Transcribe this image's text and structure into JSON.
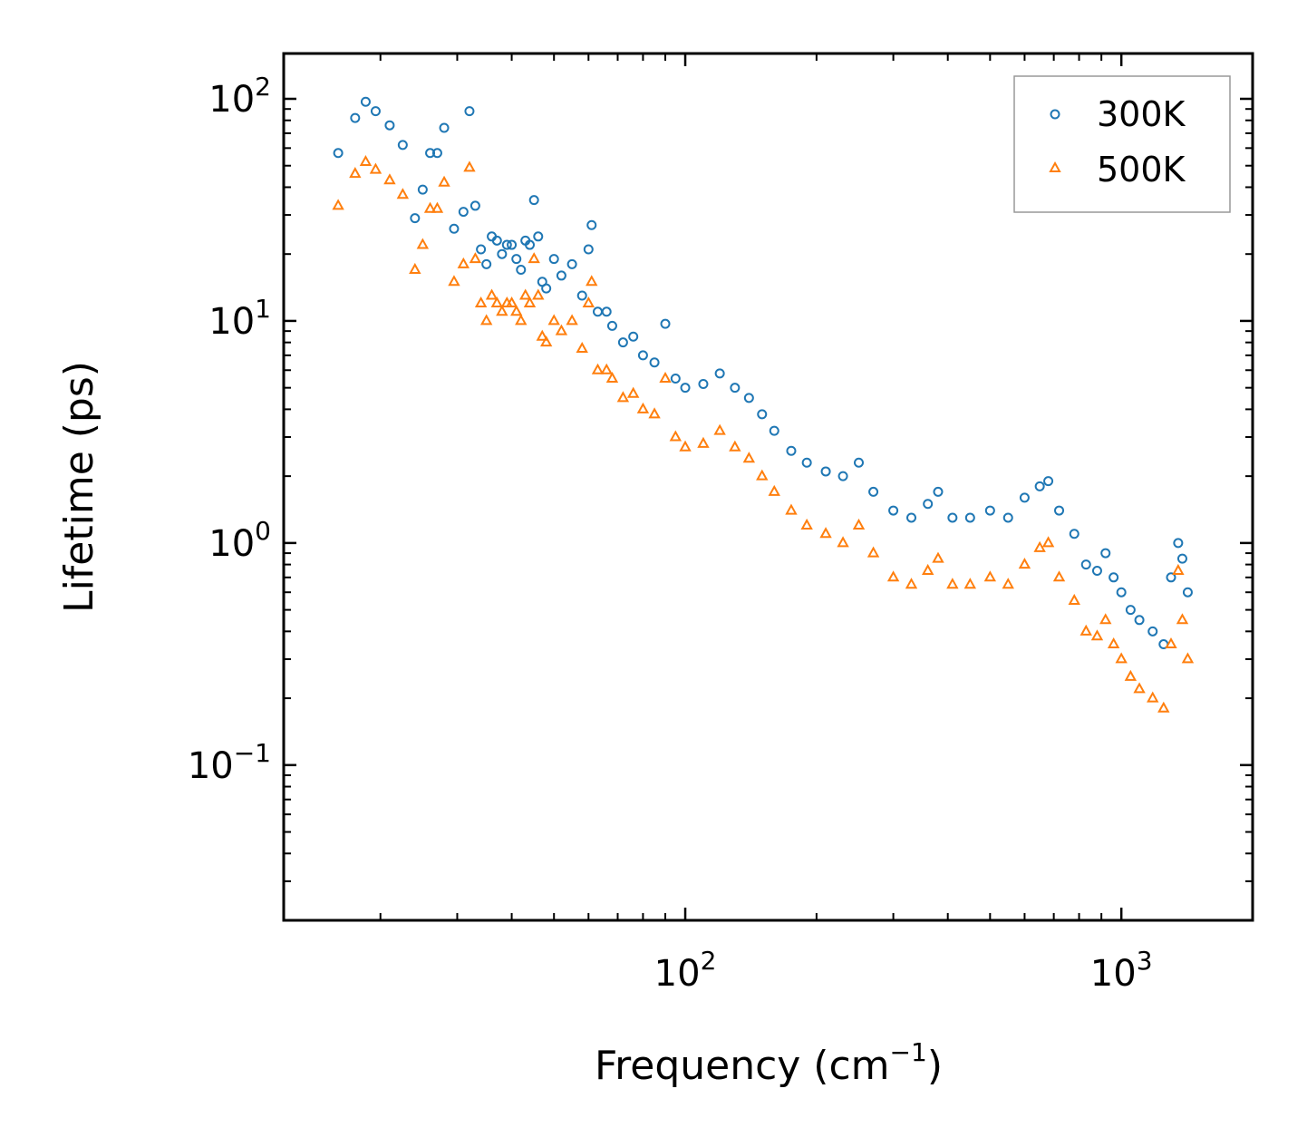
{
  "chart_data": {
    "type": "scatter",
    "title": "",
    "xlabel": "Frequency (cm",
    "xlabel_sup": "−1",
    "xlabel_end": ")",
    "ylabel": "Lifetime (ps)",
    "xscale": "log",
    "yscale": "log",
    "xlim": [
      12,
      2000
    ],
    "ylim": [
      0.02,
      160
    ],
    "legend_position": "top-right",
    "x_ticks": [
      {
        "value": 100,
        "base": "10",
        "exp": "2"
      },
      {
        "value": 1000,
        "base": "10",
        "exp": "3"
      }
    ],
    "y_ticks": [
      {
        "value": 0.1,
        "base": "10",
        "exp": "−1"
      },
      {
        "value": 1,
        "base": "10",
        "exp": "0"
      },
      {
        "value": 10,
        "base": "10",
        "exp": "1"
      },
      {
        "value": 100,
        "base": "10",
        "exp": "2"
      }
    ],
    "series": [
      {
        "name": "300K",
        "color": "#1f77b4",
        "marker": "circle",
        "points": [
          [
            16,
            57
          ],
          [
            17.5,
            82
          ],
          [
            18.5,
            97
          ],
          [
            19.5,
            88
          ],
          [
            21,
            76
          ],
          [
            22.5,
            62
          ],
          [
            24,
            29
          ],
          [
            25,
            39
          ],
          [
            26,
            57
          ],
          [
            27,
            57
          ],
          [
            28,
            74
          ],
          [
            29.5,
            26
          ],
          [
            31,
            31
          ],
          [
            32,
            88
          ],
          [
            33,
            33
          ],
          [
            34,
            21
          ],
          [
            35,
            18
          ],
          [
            36,
            24
          ],
          [
            37,
            23
          ],
          [
            38,
            20
          ],
          [
            39,
            22
          ],
          [
            40,
            22
          ],
          [
            41,
            19
          ],
          [
            42,
            17
          ],
          [
            43,
            23
          ],
          [
            44,
            22
          ],
          [
            45,
            35
          ],
          [
            46,
            24
          ],
          [
            47,
            15
          ],
          [
            48,
            14
          ],
          [
            50,
            19
          ],
          [
            52,
            16
          ],
          [
            55,
            18
          ],
          [
            58,
            13
          ],
          [
            60,
            21
          ],
          [
            61,
            27
          ],
          [
            63,
            11
          ],
          [
            66,
            11
          ],
          [
            68,
            9.5
          ],
          [
            72,
            8
          ],
          [
            76,
            8.5
          ],
          [
            80,
            7
          ],
          [
            85,
            6.5
          ],
          [
            90,
            9.7
          ],
          [
            95,
            5.5
          ],
          [
            100,
            5
          ],
          [
            110,
            5.2
          ],
          [
            120,
            5.8
          ],
          [
            130,
            5
          ],
          [
            140,
            4.5
          ],
          [
            150,
            3.8
          ],
          [
            160,
            3.2
          ],
          [
            175,
            2.6
          ],
          [
            190,
            2.3
          ],
          [
            210,
            2.1
          ],
          [
            230,
            2.0
          ],
          [
            250,
            2.3
          ],
          [
            270,
            1.7
          ],
          [
            300,
            1.4
          ],
          [
            330,
            1.3
          ],
          [
            360,
            1.5
          ],
          [
            380,
            1.7
          ],
          [
            410,
            1.3
          ],
          [
            450,
            1.3
          ],
          [
            500,
            1.4
          ],
          [
            550,
            1.3
          ],
          [
            600,
            1.6
          ],
          [
            650,
            1.8
          ],
          [
            680,
            1.9
          ],
          [
            720,
            1.4
          ],
          [
            780,
            1.1
          ],
          [
            830,
            0.8
          ],
          [
            880,
            0.75
          ],
          [
            920,
            0.9
          ],
          [
            960,
            0.7
          ],
          [
            1000,
            0.6
          ],
          [
            1050,
            0.5
          ],
          [
            1100,
            0.45
          ],
          [
            1180,
            0.4
          ],
          [
            1250,
            0.35
          ],
          [
            1300,
            0.7
          ],
          [
            1350,
            1.0
          ],
          [
            1380,
            0.85
          ],
          [
            1420,
            0.6
          ]
        ]
      },
      {
        "name": "500K",
        "color": "#ff7f0e",
        "marker": "triangle",
        "points": [
          [
            16,
            33
          ],
          [
            17.5,
            46
          ],
          [
            18.5,
            52
          ],
          [
            19.5,
            48
          ],
          [
            21,
            43
          ],
          [
            22.5,
            37
          ],
          [
            24,
            17
          ],
          [
            25,
            22
          ],
          [
            26,
            32
          ],
          [
            27,
            32
          ],
          [
            28,
            42
          ],
          [
            29.5,
            15
          ],
          [
            31,
            18
          ],
          [
            32,
            49
          ],
          [
            33,
            19
          ],
          [
            34,
            12
          ],
          [
            35,
            10
          ],
          [
            36,
            13
          ],
          [
            37,
            12
          ],
          [
            38,
            11
          ],
          [
            39,
            12
          ],
          [
            40,
            12
          ],
          [
            41,
            11
          ],
          [
            42,
            10
          ],
          [
            43,
            13
          ],
          [
            44,
            12
          ],
          [
            45,
            19
          ],
          [
            46,
            13
          ],
          [
            47,
            8.5
          ],
          [
            48,
            8
          ],
          [
            50,
            10
          ],
          [
            52,
            9
          ],
          [
            55,
            10
          ],
          [
            58,
            7.5
          ],
          [
            60,
            12
          ],
          [
            61,
            15
          ],
          [
            63,
            6
          ],
          [
            66,
            6
          ],
          [
            68,
            5.5
          ],
          [
            72,
            4.5
          ],
          [
            76,
            4.7
          ],
          [
            80,
            4
          ],
          [
            85,
            3.8
          ],
          [
            90,
            5.5
          ],
          [
            95,
            3
          ],
          [
            100,
            2.7
          ],
          [
            110,
            2.8
          ],
          [
            120,
            3.2
          ],
          [
            130,
            2.7
          ],
          [
            140,
            2.4
          ],
          [
            150,
            2.0
          ],
          [
            160,
            1.7
          ],
          [
            175,
            1.4
          ],
          [
            190,
            1.2
          ],
          [
            210,
            1.1
          ],
          [
            230,
            1.0
          ],
          [
            250,
            1.2
          ],
          [
            270,
            0.9
          ],
          [
            300,
            0.7
          ],
          [
            330,
            0.65
          ],
          [
            360,
            0.75
          ],
          [
            380,
            0.85
          ],
          [
            410,
            0.65
          ],
          [
            450,
            0.65
          ],
          [
            500,
            0.7
          ],
          [
            550,
            0.65
          ],
          [
            600,
            0.8
          ],
          [
            650,
            0.95
          ],
          [
            680,
            1.0
          ],
          [
            720,
            0.7
          ],
          [
            780,
            0.55
          ],
          [
            830,
            0.4
          ],
          [
            880,
            0.38
          ],
          [
            920,
            0.45
          ],
          [
            960,
            0.35
          ],
          [
            1000,
            0.3
          ],
          [
            1050,
            0.25
          ],
          [
            1100,
            0.22
          ],
          [
            1180,
            0.2
          ],
          [
            1250,
            0.18
          ],
          [
            1300,
            0.35
          ],
          [
            1350,
            0.75
          ],
          [
            1380,
            0.45
          ],
          [
            1420,
            0.3
          ]
        ]
      }
    ]
  }
}
